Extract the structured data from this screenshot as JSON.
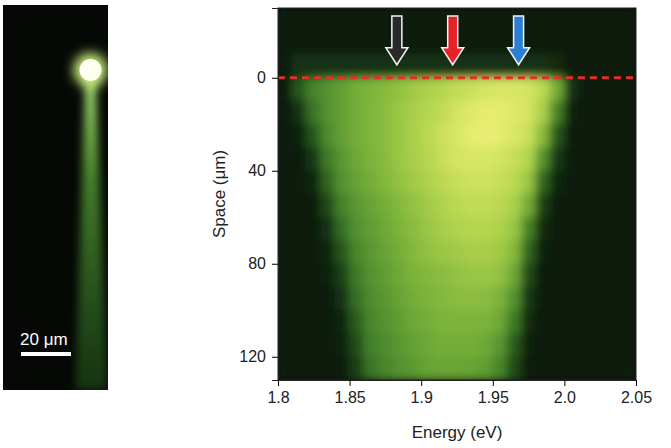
{
  "chart_data": [
    {
      "type": "image",
      "xlim": [
        0,
        42
      ],
      "ylim": [
        0,
        154
      ],
      "tick_labels": false,
      "spot": {
        "x": 35,
        "y": 26
      },
      "scale_bar": {
        "length": 20,
        "label": "20 μm"
      }
    },
    {
      "type": "heatmap",
      "xlabel": "Energy (eV)",
      "ylabel": "Space (μm)",
      "xlim": [
        1.8,
        2.05
      ],
      "xticks": [
        1.8,
        1.85,
        1.9,
        1.95,
        {
          "value": 2,
          "label": "2.0"
        },
        2.05
      ],
      "ylim": [
        -30,
        130
      ],
      "yticks": [
        0,
        40,
        80,
        120
      ],
      "zlim": [
        0,
        1
      ],
      "hline": 0,
      "arrows": [
        {
          "x": 1.883,
          "color": "#2a2a2a"
        },
        {
          "x": 1.922,
          "color": "#e8202a"
        },
        {
          "x": 1.968,
          "color": "#2a7fd4"
        }
      ],
      "x_edges": [
        1.8,
        1.81,
        1.82,
        1.83,
        1.84,
        1.85,
        1.86,
        1.87,
        1.88,
        1.89,
        1.9,
        1.91,
        1.92,
        1.93,
        1.94,
        1.95,
        1.96,
        1.97,
        1.98,
        1.99,
        2.0,
        2.01,
        2.02,
        2.03,
        2.04,
        2.05
      ],
      "y_edges": [
        -30,
        -20,
        -10,
        0,
        10,
        20,
        30,
        40,
        50,
        60,
        70,
        80,
        90,
        100,
        110,
        120,
        130
      ],
      "cells": [
        [
          0.05,
          0.05,
          0.05,
          0.05,
          0.05,
          0.05,
          0.05,
          0.05,
          0.05,
          0.05,
          0.05,
          0.05,
          0.05,
          0.05,
          0.05,
          0.05,
          0.05,
          0.05,
          0.05,
          0.05,
          0.05,
          0.05,
          0.05,
          0.05,
          0.05
        ],
        [
          0.05,
          0.05,
          0.05,
          0.05,
          0.05,
          0.05,
          0.05,
          0.05,
          0.05,
          0.05,
          0.05,
          0.05,
          0.05,
          0.05,
          0.05,
          0.05,
          0.05,
          0.05,
          0.05,
          0.05,
          0.05,
          0.05,
          0.05,
          0.05,
          0.05
        ],
        [
          0.05,
          0.15,
          0.15,
          0.15,
          0.15,
          0.15,
          0.15,
          0.15,
          0.15,
          0.15,
          0.15,
          0.15,
          0.15,
          0.15,
          0.15,
          0.15,
          0.15,
          0.15,
          0.15,
          0.12,
          0.05,
          0.05,
          0.05,
          0.05,
          0.05
        ],
        [
          0.05,
          0.3,
          0.45,
          0.5,
          0.55,
          0.6,
          0.62,
          0.65,
          0.68,
          0.72,
          0.75,
          0.78,
          0.82,
          0.85,
          0.88,
          0.9,
          0.9,
          0.88,
          0.8,
          0.6,
          0.15,
          0.05,
          0.05,
          0.05,
          0.05
        ],
        [
          0.05,
          0.15,
          0.4,
          0.5,
          0.55,
          0.6,
          0.63,
          0.66,
          0.7,
          0.74,
          0.78,
          0.82,
          0.88,
          0.92,
          0.95,
          0.95,
          0.92,
          0.88,
          0.75,
          0.45,
          0.08,
          0.05,
          0.05,
          0.05,
          0.05
        ],
        [
          0.05,
          0.08,
          0.3,
          0.48,
          0.55,
          0.6,
          0.63,
          0.66,
          0.7,
          0.75,
          0.8,
          0.85,
          0.9,
          0.95,
          0.96,
          0.95,
          0.9,
          0.85,
          0.65,
          0.3,
          0.06,
          0.05,
          0.05,
          0.05,
          0.05
        ],
        [
          0.05,
          0.05,
          0.18,
          0.42,
          0.52,
          0.58,
          0.62,
          0.65,
          0.7,
          0.74,
          0.78,
          0.84,
          0.88,
          0.9,
          0.9,
          0.88,
          0.84,
          0.78,
          0.5,
          0.18,
          0.05,
          0.05,
          0.05,
          0.05,
          0.05
        ],
        [
          0.05,
          0.05,
          0.1,
          0.35,
          0.5,
          0.56,
          0.6,
          0.64,
          0.68,
          0.72,
          0.76,
          0.8,
          0.84,
          0.86,
          0.86,
          0.84,
          0.8,
          0.7,
          0.35,
          0.1,
          0.05,
          0.05,
          0.05,
          0.05,
          0.05
        ],
        [
          0.05,
          0.05,
          0.06,
          0.25,
          0.45,
          0.52,
          0.56,
          0.6,
          0.64,
          0.68,
          0.72,
          0.76,
          0.8,
          0.82,
          0.82,
          0.8,
          0.75,
          0.6,
          0.22,
          0.06,
          0.05,
          0.05,
          0.05,
          0.05,
          0.05
        ],
        [
          0.05,
          0.05,
          0.05,
          0.15,
          0.38,
          0.5,
          0.54,
          0.58,
          0.62,
          0.66,
          0.7,
          0.74,
          0.76,
          0.78,
          0.78,
          0.76,
          0.7,
          0.45,
          0.12,
          0.05,
          0.05,
          0.05,
          0.05,
          0.05,
          0.05
        ],
        [
          0.05,
          0.05,
          0.05,
          0.1,
          0.3,
          0.46,
          0.52,
          0.56,
          0.6,
          0.64,
          0.68,
          0.7,
          0.72,
          0.74,
          0.74,
          0.72,
          0.64,
          0.35,
          0.08,
          0.05,
          0.05,
          0.05,
          0.05,
          0.05,
          0.05
        ],
        [
          0.05,
          0.05,
          0.05,
          0.07,
          0.22,
          0.42,
          0.5,
          0.54,
          0.58,
          0.62,
          0.64,
          0.66,
          0.68,
          0.7,
          0.7,
          0.68,
          0.58,
          0.25,
          0.06,
          0.05,
          0.05,
          0.05,
          0.05,
          0.05,
          0.05
        ],
        [
          0.05,
          0.05,
          0.05,
          0.05,
          0.15,
          0.38,
          0.48,
          0.52,
          0.56,
          0.6,
          0.62,
          0.64,
          0.66,
          0.66,
          0.66,
          0.62,
          0.5,
          0.18,
          0.05,
          0.05,
          0.05,
          0.05,
          0.05,
          0.05,
          0.05
        ],
        [
          0.05,
          0.05,
          0.05,
          0.05,
          0.1,
          0.32,
          0.46,
          0.5,
          0.54,
          0.58,
          0.6,
          0.62,
          0.62,
          0.62,
          0.62,
          0.58,
          0.42,
          0.12,
          0.05,
          0.05,
          0.05,
          0.05,
          0.05,
          0.05,
          0.05
        ],
        [
          0.05,
          0.05,
          0.05,
          0.05,
          0.07,
          0.26,
          0.44,
          0.48,
          0.52,
          0.55,
          0.58,
          0.6,
          0.6,
          0.6,
          0.58,
          0.52,
          0.32,
          0.08,
          0.05,
          0.05,
          0.05,
          0.05,
          0.05,
          0.05,
          0.05
        ],
        [
          0.05,
          0.05,
          0.05,
          0.05,
          0.05,
          0.2,
          0.4,
          0.46,
          0.5,
          0.53,
          0.56,
          0.57,
          0.57,
          0.56,
          0.54,
          0.46,
          0.25,
          0.06,
          0.05,
          0.05,
          0.05,
          0.05,
          0.05,
          0.05,
          0.05
        ]
      ]
    }
  ]
}
